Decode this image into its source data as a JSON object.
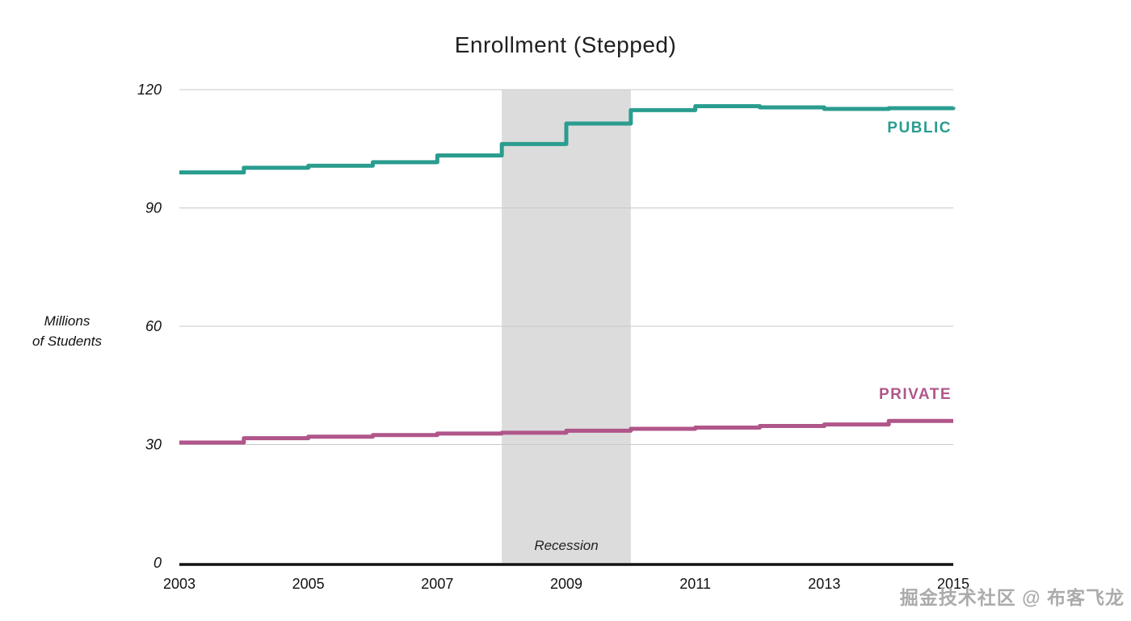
{
  "title": "Enrollment (Stepped)",
  "y_axis_label": {
    "line1": "Millions",
    "line2": "of Students"
  },
  "watermark": "掘金技术社区 @ 布客飞龙",
  "colors": {
    "public": "#2a9d8f",
    "private": "#b0568a",
    "grid": "#c9c9c9",
    "axis": "#111111",
    "band": "#dcdcdc",
    "title": "#1f1f1f"
  },
  "chart_data": {
    "type": "line",
    "style": "stepped",
    "title": "Enrollment (Stepped)",
    "xlabel": "",
    "ylabel": "Millions of Students",
    "x": [
      2003,
      2004,
      2005,
      2006,
      2007,
      2008,
      2009,
      2010,
      2011,
      2012,
      2013,
      2014,
      2015
    ],
    "series": [
      {
        "name": "PUBLIC",
        "color": "#2a9d8f",
        "values": [
          99,
          100.2,
          100.7,
          101.6,
          103.3,
          106.2,
          111.4,
          114.8,
          115.8,
          115.5,
          115.1,
          115.3,
          115.6
        ]
      },
      {
        "name": "PRIVATE",
        "color": "#b0568a",
        "values": [
          30.5,
          31.6,
          32,
          32.4,
          32.8,
          33,
          33.5,
          34,
          34.3,
          34.7,
          35.1,
          36,
          36
        ]
      }
    ],
    "xticks": [
      2003,
      2005,
      2007,
      2009,
      2011,
      2013,
      2015
    ],
    "yticks": [
      0,
      30,
      60,
      90,
      120
    ],
    "xlim": [
      2003,
      2015
    ],
    "ylim": [
      0,
      120
    ],
    "grid": "horizontal",
    "legend_position": "inline-right",
    "annotations": [
      {
        "type": "band",
        "label": "Recession",
        "x_start": 2008,
        "x_end": 2010
      }
    ]
  }
}
